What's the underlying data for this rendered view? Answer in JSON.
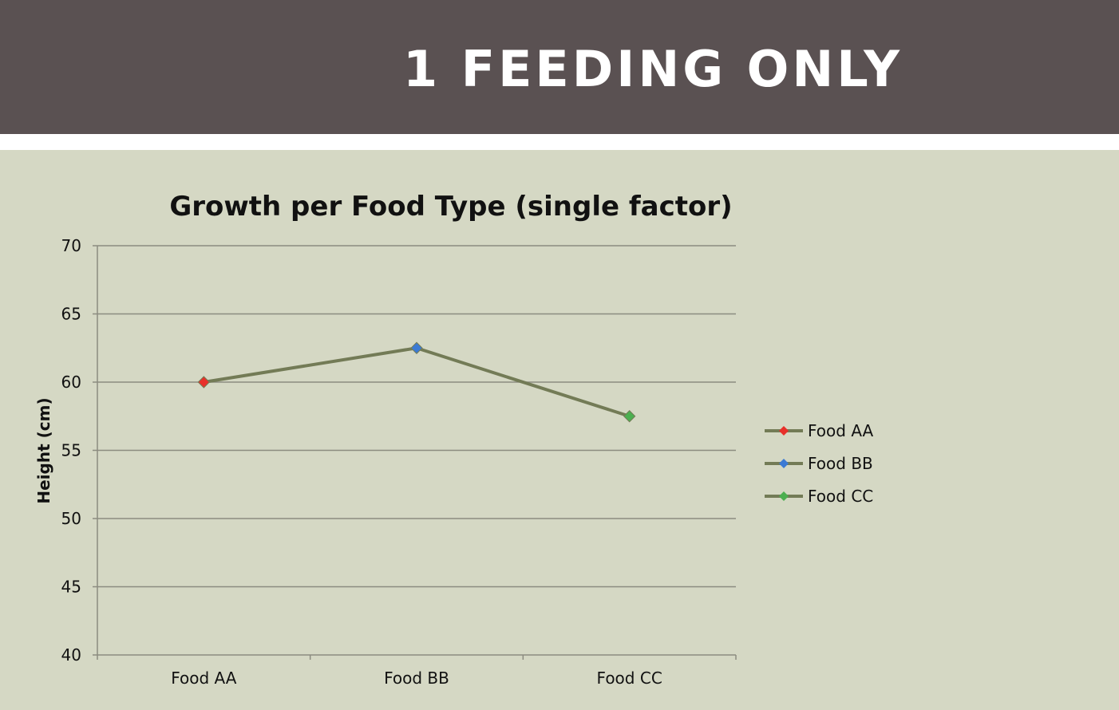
{
  "slide": {
    "title": "1 FEEDING ONLY"
  },
  "colors": {
    "header_bg": "#5a5152",
    "slide_bg": "#d5d8c4",
    "line": "#737b56",
    "gridline": "#8c8c80",
    "marker_food_aa": "#e8302a",
    "marker_food_bb": "#3b7ad4",
    "marker_food_cc": "#4caf50"
  },
  "chart_data": {
    "type": "line",
    "title": "Growth per Food Type (single factor)",
    "xlabel": "",
    "ylabel": "Height (cm)",
    "categories": [
      "Food AA",
      "Food BB",
      "Food CC"
    ],
    "values": [
      60,
      62.5,
      57.5
    ],
    "ylim": [
      40,
      70
    ],
    "yticks": [
      40,
      45,
      50,
      55,
      60,
      65,
      70
    ],
    "grid": true,
    "legend_position": "right",
    "legend": [
      {
        "label": "Food AA",
        "marker_color": "#e8302a"
      },
      {
        "label": "Food BB",
        "marker_color": "#3b7ad4"
      },
      {
        "label": "Food CC",
        "marker_color": "#4caf50"
      }
    ]
  }
}
